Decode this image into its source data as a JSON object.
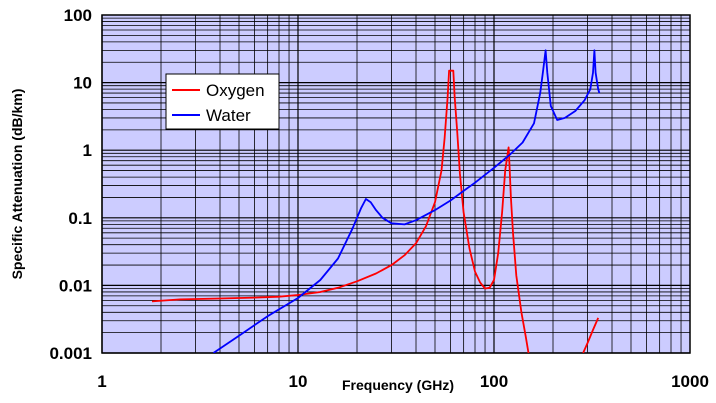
{
  "chart_data": {
    "type": "line",
    "xlabel": "Frequency (GHz)",
    "ylabel": "Specific Attenuation (dB/km)",
    "x_scale": "log",
    "y_scale": "log",
    "xlim": [
      1,
      1000
    ],
    "ylim": [
      0.001,
      100
    ],
    "x_ticks": [
      "1",
      "10",
      "100",
      "1000"
    ],
    "y_ticks": [
      "0.001",
      "0.01",
      "0.1",
      "1",
      "10",
      "100"
    ],
    "grid": true,
    "plot_background": "#ccccff",
    "legend_position": "upper-left",
    "series": [
      {
        "name": "Oxygen",
        "color": "#ff0000",
        "segments": [
          [
            [
              1.8,
              0.0058
            ],
            [
              2.5,
              0.0062
            ],
            [
              4,
              0.0064
            ],
            [
              6,
              0.0066
            ],
            [
              8,
              0.0068
            ],
            [
              10,
              0.0072
            ],
            [
              13,
              0.008
            ],
            [
              16,
              0.0092
            ],
            [
              20,
              0.0115
            ],
            [
              25,
              0.015
            ],
            [
              30,
              0.02
            ],
            [
              35,
              0.028
            ],
            [
              40,
              0.042
            ],
            [
              45,
              0.075
            ],
            [
              50,
              0.17
            ],
            [
              54,
              0.5
            ],
            [
              56,
              1.5
            ],
            [
              58,
              6
            ],
            [
              59,
              15
            ],
            [
              62,
              15
            ],
            [
              63,
              6
            ],
            [
              65,
              1.8
            ],
            [
              67,
              0.45
            ],
            [
              70,
              0.12
            ],
            [
              75,
              0.035
            ],
            [
              80,
              0.016
            ],
            [
              85,
              0.011
            ],
            [
              90,
              0.009
            ],
            [
              95,
              0.0092
            ],
            [
              100,
              0.012
            ],
            [
              105,
              0.03
            ],
            [
              110,
              0.12
            ],
            [
              114,
              0.5
            ],
            [
              118.75,
              1.1
            ],
            [
              120,
              0.6
            ],
            [
              122,
              0.2
            ],
            [
              125,
              0.06
            ],
            [
              130,
              0.014
            ],
            [
              138,
              0.004
            ],
            [
              145,
              0.0018
            ],
            [
              150,
              0.001
            ]
          ],
          [
            [
              285,
              0.001
            ],
            [
              300,
              0.0014
            ],
            [
              320,
              0.0022
            ],
            [
              340,
              0.0033
            ]
          ]
        ]
      },
      {
        "name": "Water",
        "color": "#0000ff",
        "segments": [
          [
            [
              3.7,
              0.001
            ],
            [
              5,
              0.0018
            ],
            [
              7,
              0.0035
            ],
            [
              10,
              0.0065
            ],
            [
              13,
              0.012
            ],
            [
              16,
              0.025
            ],
            [
              19,
              0.07
            ],
            [
              21,
              0.14
            ],
            [
              22.2,
              0.19
            ],
            [
              23.5,
              0.17
            ],
            [
              25,
              0.13
            ],
            [
              27,
              0.1
            ],
            [
              30,
              0.083
            ],
            [
              35,
              0.08
            ],
            [
              40,
              0.092
            ],
            [
              50,
              0.13
            ],
            [
              60,
              0.18
            ],
            [
              70,
              0.25
            ],
            [
              80,
              0.33
            ],
            [
              100,
              0.55
            ],
            [
              120,
              0.85
            ],
            [
              140,
              1.3
            ],
            [
              160,
              2.5
            ],
            [
              172,
              7
            ],
            [
              178,
              15
            ],
            [
              183.3,
              30
            ],
            [
              187,
              14
            ],
            [
              195,
              4.5
            ],
            [
              210,
              2.8
            ],
            [
              230,
              3.0
            ],
            [
              260,
              3.8
            ],
            [
              290,
              5.5
            ],
            [
              310,
              8
            ],
            [
              320,
              14
            ],
            [
              325.15,
              30
            ],
            [
              330,
              14
            ],
            [
              340,
              8
            ],
            [
              345,
              7
            ]
          ]
        ]
      }
    ]
  }
}
